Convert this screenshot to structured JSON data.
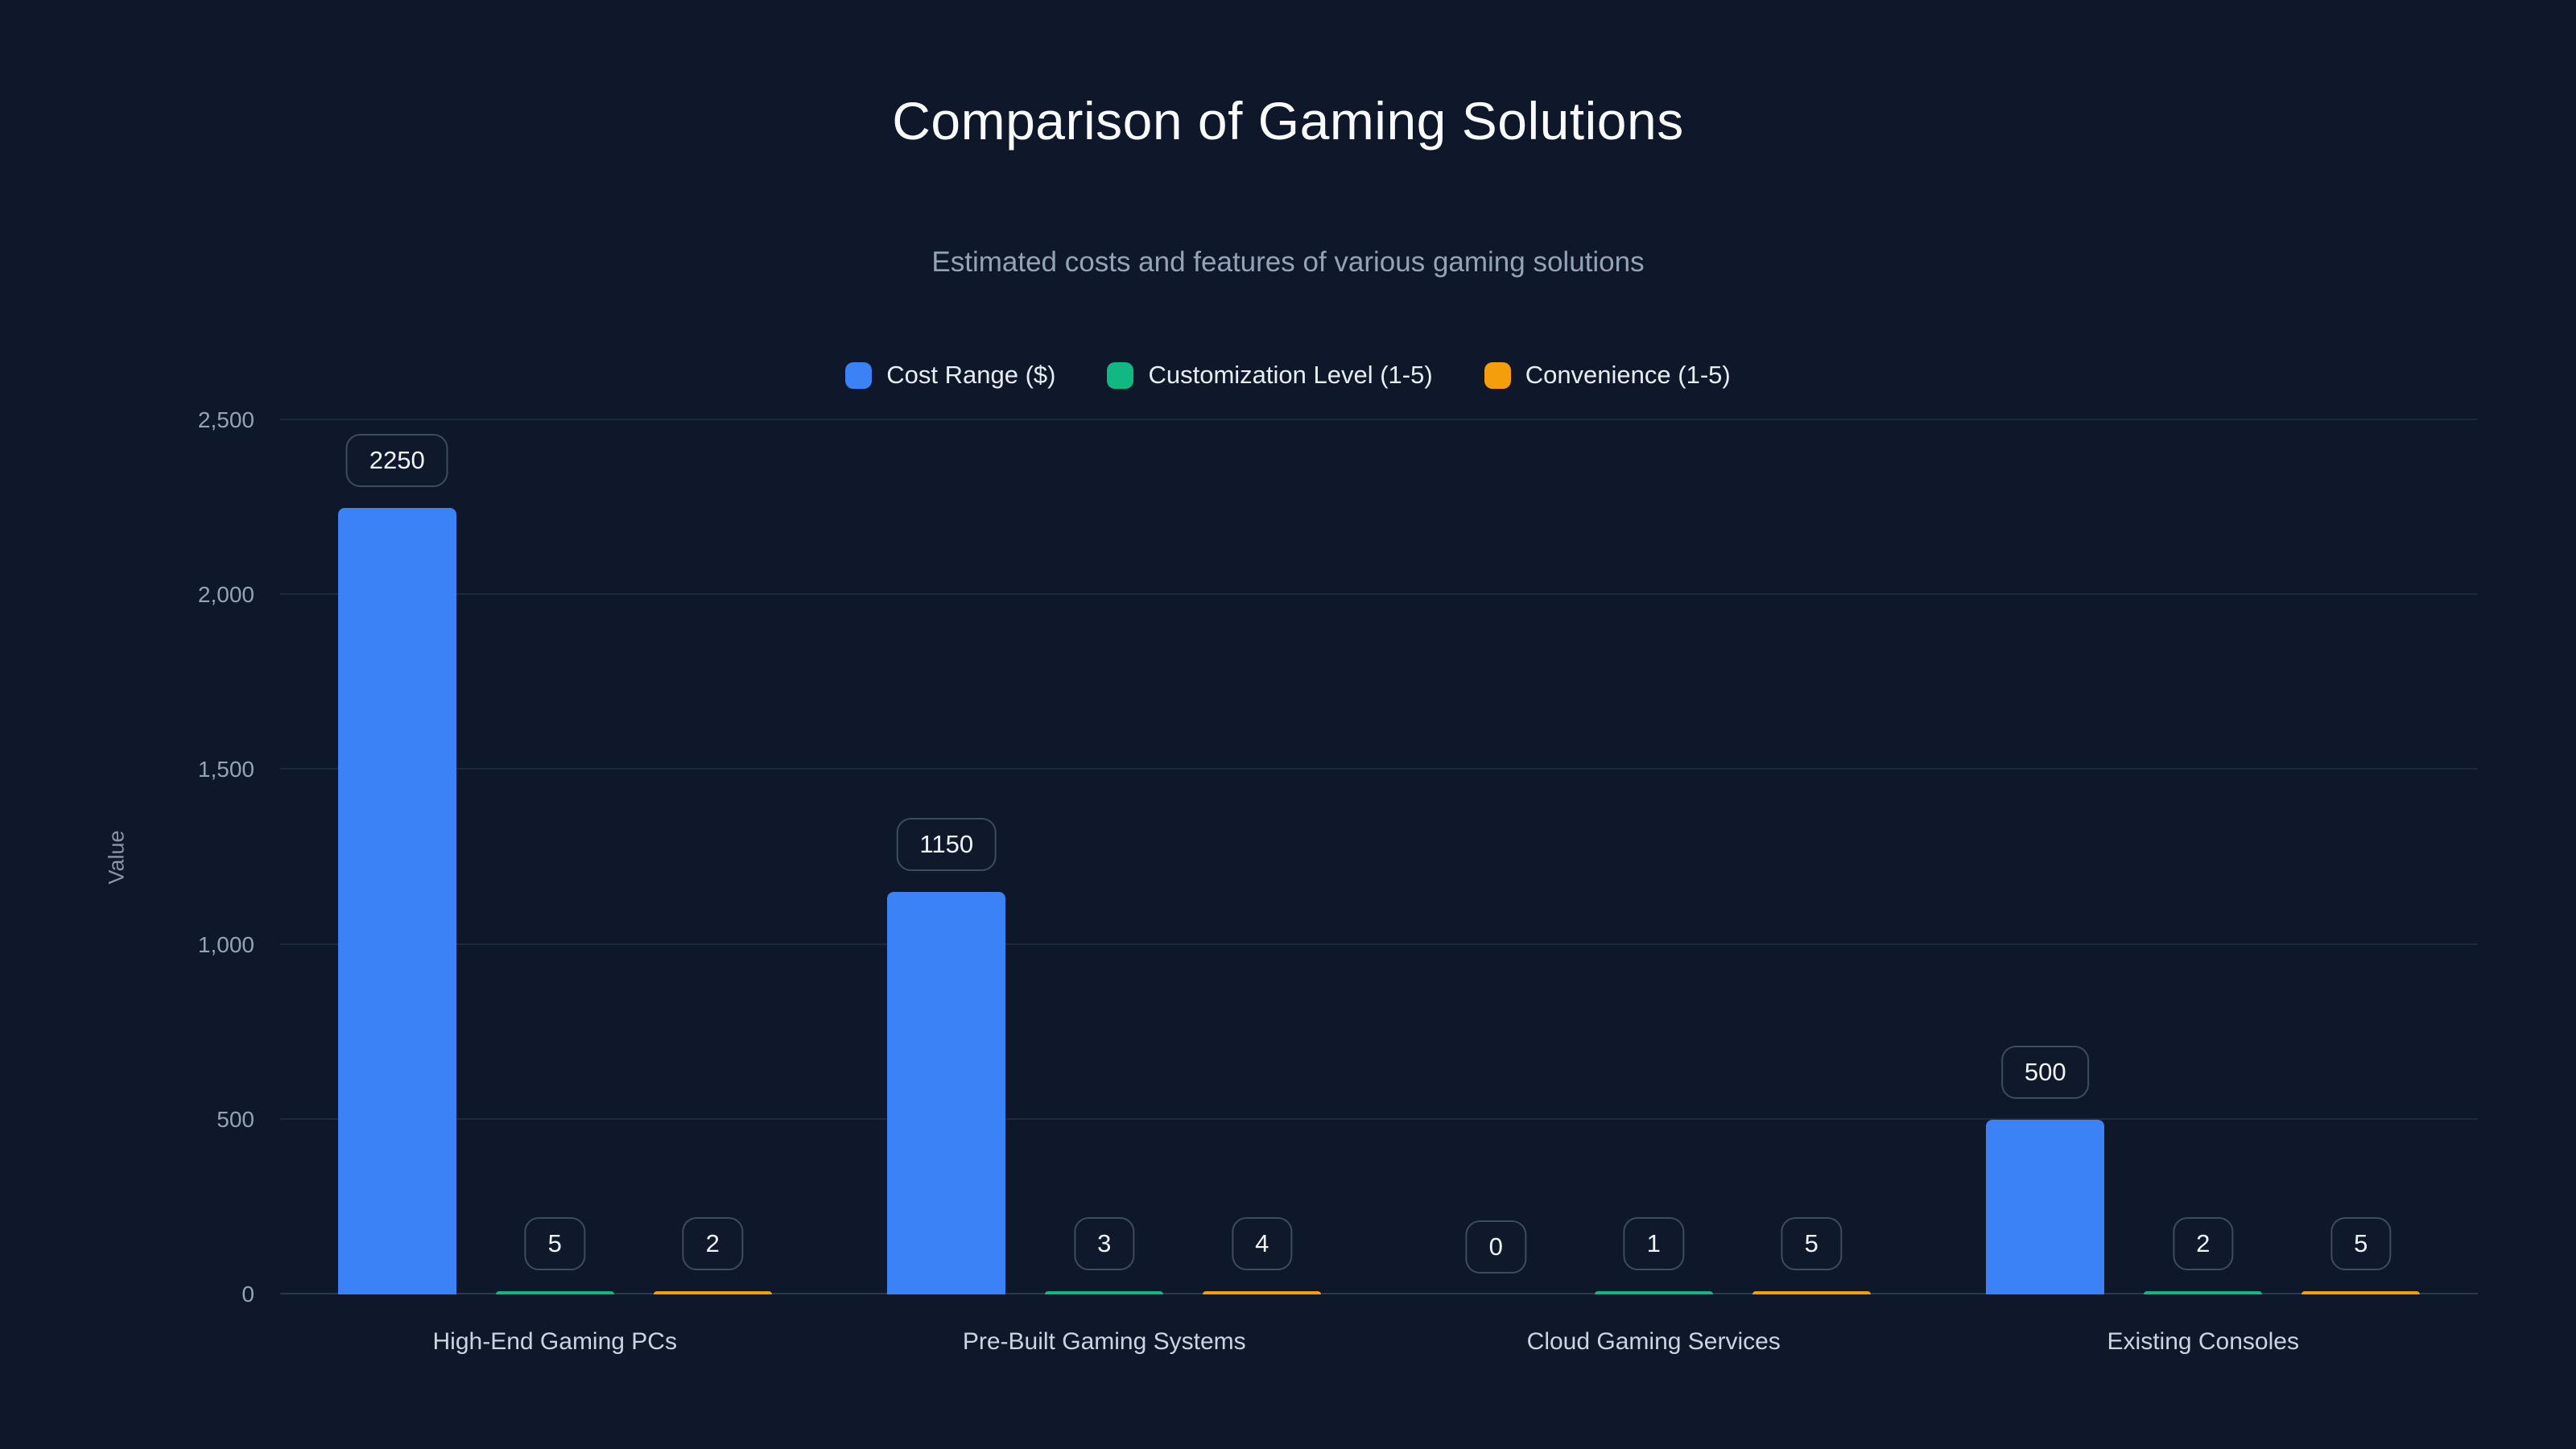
{
  "title": "Comparison of Gaming Solutions",
  "subtitle": "Estimated costs and features of various gaming solutions",
  "colors": {
    "background": "#0f172a",
    "cost_range": "#3b82f6",
    "customization": "#10b981",
    "convenience": "#f59e0b"
  },
  "chart_data": {
    "type": "bar",
    "title": "Comparison of Gaming Solutions",
    "subtitle": "Estimated costs and features of various gaming solutions",
    "categories": [
      "High-End Gaming PCs",
      "Pre-Built Gaming Systems",
      "Cloud Gaming Services",
      "Existing Consoles"
    ],
    "series": [
      {
        "name": "Cost Range ($)",
        "color": "#3b82f6",
        "values": [
          2250,
          1150,
          0,
          500
        ]
      },
      {
        "name": "Customization Level (1-5)",
        "color": "#10b981",
        "values": [
          5,
          3,
          1,
          2
        ]
      },
      {
        "name": "Convenience (1-5)",
        "color": "#f59e0b",
        "values": [
          2,
          4,
          5,
          5
        ]
      }
    ],
    "xlabel": "",
    "ylabel": "Value",
    "ylim": [
      0,
      2500
    ],
    "ytick_labels": [
      "0",
      "500",
      "1,000",
      "1,500",
      "2,000",
      "2,500"
    ],
    "grid": true,
    "legend_position": "top",
    "value_labels_shown": true
  }
}
